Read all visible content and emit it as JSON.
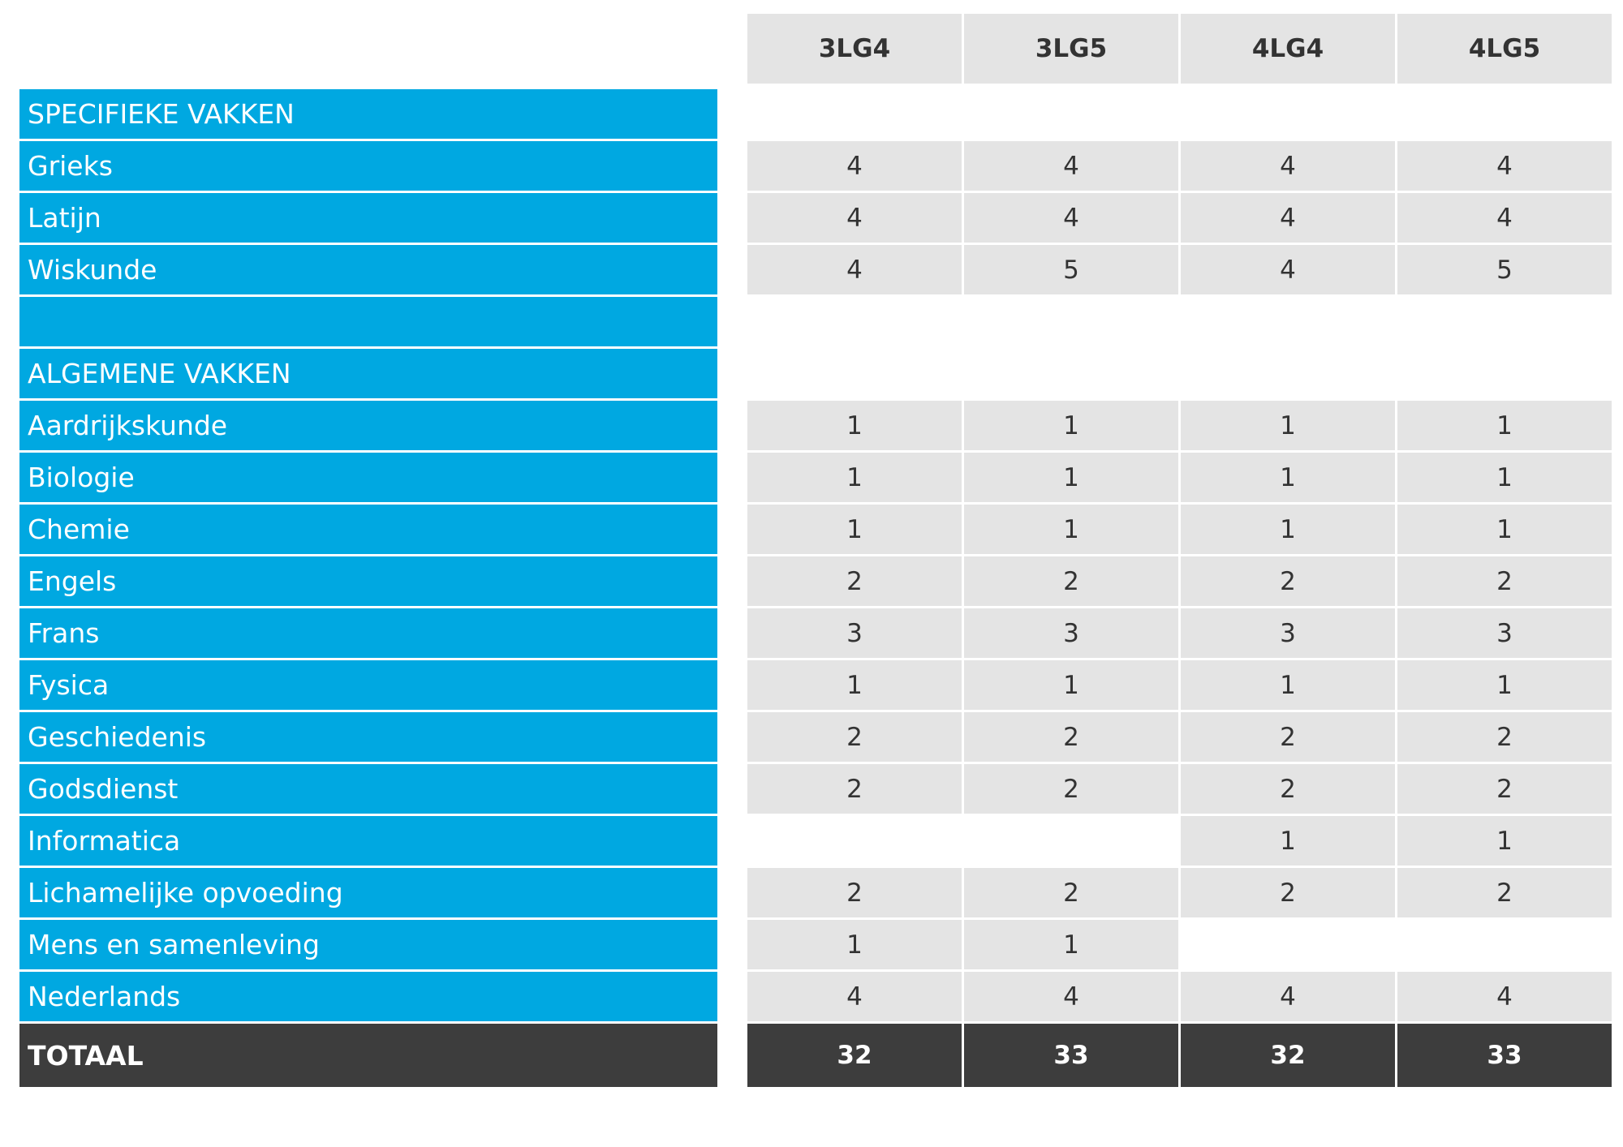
{
  "table": {
    "columns": [
      "3LG4",
      "3LG5",
      "4LG4",
      "4LG5"
    ],
    "rows": [
      {
        "label": "SPECIFIEKE VAKKEN",
        "values": [
          "",
          "",
          "",
          ""
        ]
      },
      {
        "label": "Grieks",
        "values": [
          "4",
          "4",
          "4",
          "4"
        ]
      },
      {
        "label": "Latijn",
        "values": [
          "4",
          "4",
          "4",
          "4"
        ]
      },
      {
        "label": "Wiskunde",
        "values": [
          "4",
          "5",
          "4",
          "5"
        ]
      },
      {
        "label": "",
        "values": [
          "",
          "",
          "",
          ""
        ]
      },
      {
        "label": "ALGEMENE VAKKEN",
        "values": [
          "",
          "",
          "",
          ""
        ]
      },
      {
        "label": "Aardrijkskunde",
        "values": [
          "1",
          "1",
          "1",
          "1"
        ]
      },
      {
        "label": "Biologie",
        "values": [
          "1",
          "1",
          "1",
          "1"
        ]
      },
      {
        "label": "Chemie",
        "values": [
          "1",
          "1",
          "1",
          "1"
        ]
      },
      {
        "label": "Engels",
        "values": [
          "2",
          "2",
          "2",
          "2"
        ]
      },
      {
        "label": "Frans",
        "values": [
          "3",
          "3",
          "3",
          "3"
        ]
      },
      {
        "label": "Fysica",
        "values": [
          "1",
          "1",
          "1",
          "1"
        ]
      },
      {
        "label": "Geschiedenis",
        "values": [
          "2",
          "2",
          "2",
          "2"
        ]
      },
      {
        "label": "Godsdienst",
        "values": [
          "2",
          "2",
          "2",
          "2"
        ]
      },
      {
        "label": "Informatica",
        "values": [
          "",
          "",
          "1",
          "1"
        ]
      },
      {
        "label": "Lichamelijke opvoeding",
        "values": [
          "2",
          "2",
          "2",
          "2"
        ]
      },
      {
        "label": "Mens en samenleving",
        "values": [
          "1",
          "1",
          "",
          ""
        ]
      },
      {
        "label": "Nederlands",
        "values": [
          "4",
          "4",
          "4",
          "4"
        ]
      }
    ],
    "total": {
      "label": "TOTAAL",
      "values": [
        "32",
        "33",
        "32",
        "33"
      ]
    }
  },
  "colors": {
    "label_background": "#00a8e1",
    "cell_background": "#e4e4e4",
    "total_background": "#3d3d3d"
  }
}
